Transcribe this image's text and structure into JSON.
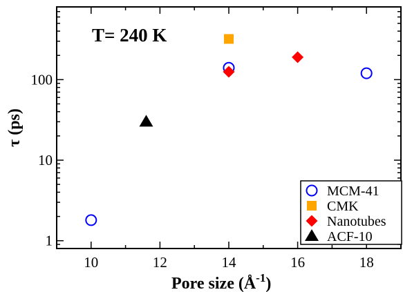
{
  "chart_data": {
    "type": "scatter",
    "xlabel": "Pore size (Å",
    "xlabel_sup": "-1",
    "xlabel_end": ")",
    "ylabel": "τ (ps)",
    "annotation": "T= 240 K",
    "xlim": [
      9,
      19
    ],
    "ylim": [
      0.8,
      800
    ],
    "yscale": "log",
    "xticks": [
      10,
      12,
      14,
      16,
      18
    ],
    "xtick_labels": [
      "10",
      "12",
      "14",
      "16",
      "18"
    ],
    "yticks": [
      1,
      10,
      100
    ],
    "ytick_labels": [
      "1",
      "10",
      "100"
    ],
    "grid": false,
    "legend_position": "bottom-right",
    "series": [
      {
        "name": "MCM-41",
        "marker": "open-circle",
        "color": "#0000ff",
        "points": [
          {
            "x": 10,
            "y": 1.8
          },
          {
            "x": 14,
            "y": 140
          },
          {
            "x": 18,
            "y": 120
          }
        ]
      },
      {
        "name": "CMK",
        "marker": "square",
        "color": "#ffa500",
        "points": [
          {
            "x": 14,
            "y": 320
          }
        ]
      },
      {
        "name": "Nanotubes",
        "marker": "diamond",
        "color": "#ff0000",
        "points": [
          {
            "x": 14,
            "y": 125
          },
          {
            "x": 16,
            "y": 190
          }
        ]
      },
      {
        "name": "ACF-10",
        "marker": "triangle",
        "color": "#000000",
        "points": [
          {
            "x": 11.6,
            "y": 30
          }
        ]
      }
    ]
  }
}
